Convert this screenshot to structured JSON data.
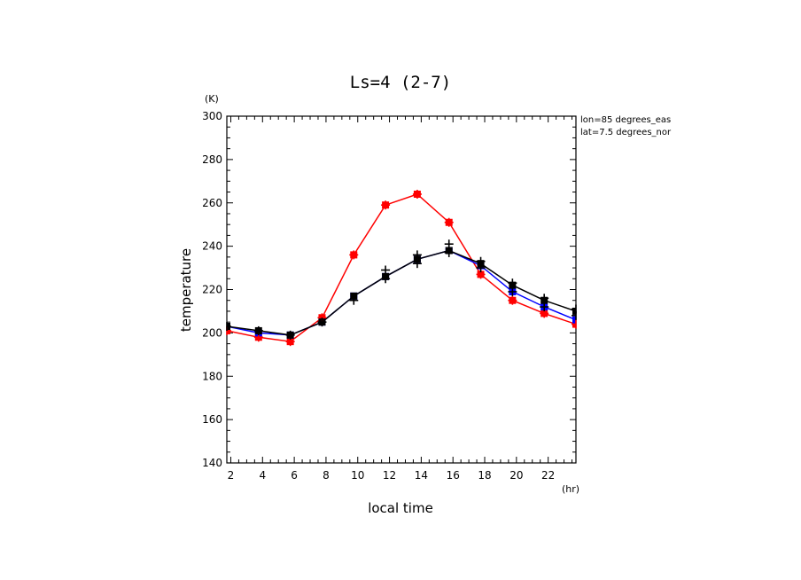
{
  "chart_data": {
    "type": "line",
    "title": "Ls=4 (2-7)",
    "xlabel": "local time",
    "ylabel": "temperature",
    "x_unit": "(hr)",
    "y_unit": "(K)",
    "xlim": [
      1.75,
      23.75
    ],
    "ylim": [
      140,
      300
    ],
    "x_ticks": [
      2,
      4,
      6,
      8,
      10,
      12,
      14,
      16,
      18,
      20,
      22
    ],
    "y_ticks": [
      140,
      160,
      180,
      200,
      220,
      240,
      260,
      280,
      300
    ],
    "annotations": [
      "lon=85 degrees_eas",
      "lat=7.5 degrees_nor"
    ],
    "grid": false,
    "x": [
      1.75,
      3.75,
      5.75,
      7.75,
      9.75,
      11.75,
      13.75,
      15.75,
      17.75,
      19.75,
      21.75,
      23.75
    ],
    "series": [
      {
        "color": "#ff0000",
        "marker": "square",
        "values": [
          201,
          198,
          196,
          207,
          236,
          259,
          264,
          251,
          227,
          215,
          209,
          204
        ]
      },
      {
        "color": "#0000ff",
        "marker": "square",
        "values": [
          203,
          200,
          199,
          205,
          217,
          226,
          234,
          238,
          231,
          219,
          212,
          206
        ]
      },
      {
        "color": "#000000",
        "marker": "square",
        "values": [
          203,
          201,
          199,
          205,
          217,
          226,
          234,
          238,
          232,
          222,
          215,
          210
        ]
      }
    ],
    "markers_plus": [
      {
        "color": "#ff0000",
        "points": [
          [
            1.75,
            201
          ],
          [
            3.75,
            198
          ],
          [
            5.75,
            196
          ],
          [
            7.75,
            207
          ],
          [
            9.75,
            236
          ],
          [
            11.75,
            259
          ],
          [
            13.75,
            264
          ],
          [
            15.75,
            251
          ],
          [
            17.75,
            227
          ],
          [
            19.75,
            215
          ],
          [
            21.75,
            209
          ],
          [
            23.75,
            204
          ]
        ]
      },
      {
        "color": "#000000",
        "points": [
          [
            1.75,
            203
          ],
          [
            3.75,
            201
          ],
          [
            5.75,
            199
          ],
          [
            7.75,
            205
          ],
          [
            9.75,
            215
          ],
          [
            11.75,
            225
          ],
          [
            11.75,
            229
          ],
          [
            13.75,
            232
          ],
          [
            13.75,
            236
          ],
          [
            15.75,
            237
          ],
          [
            15.75,
            241
          ],
          [
            17.75,
            230
          ],
          [
            17.75,
            233
          ],
          [
            19.75,
            219
          ],
          [
            19.75,
            223
          ],
          [
            21.75,
            212
          ],
          [
            21.75,
            216
          ],
          [
            23.75,
            208
          ],
          [
            23.75,
            211
          ]
        ]
      }
    ]
  }
}
